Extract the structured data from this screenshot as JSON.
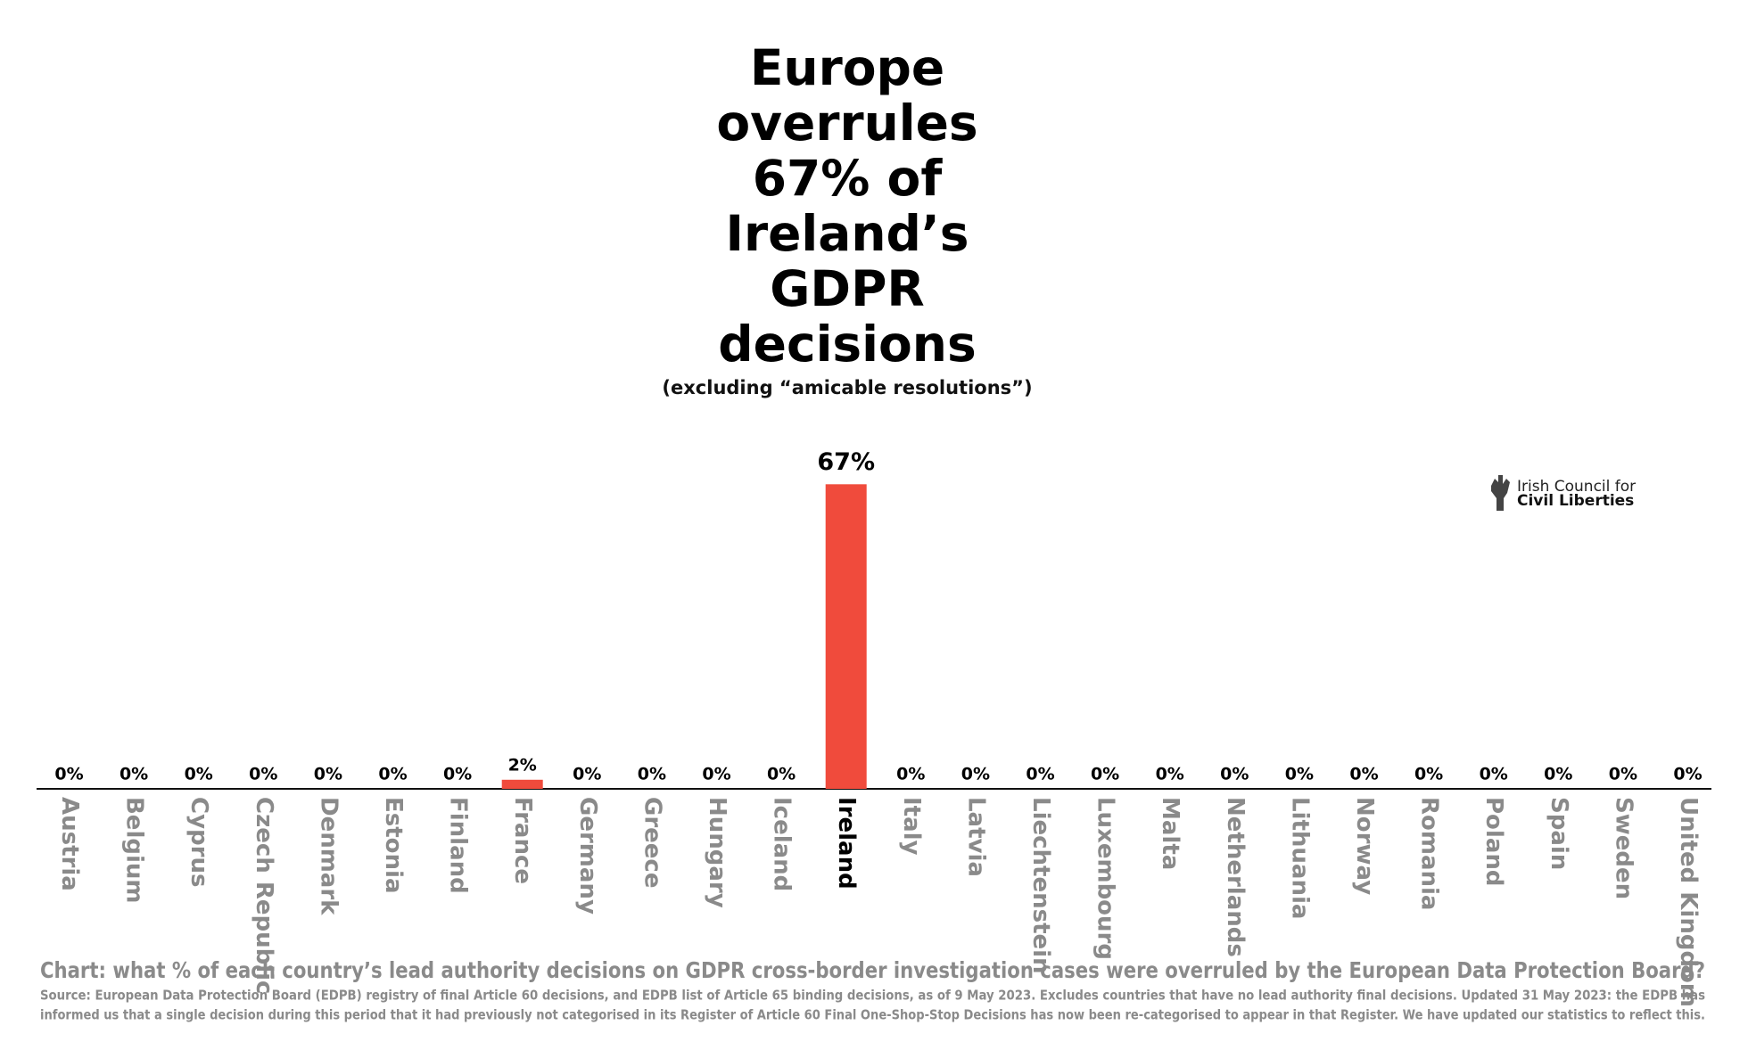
{
  "chart_data": {
    "type": "bar",
    "title": [
      "Europe",
      "overrules",
      "67% of",
      "Ireland’s",
      "GDPR",
      "decisions"
    ],
    "subtitle": "(excluding “amicable resolutions”)",
    "categories": [
      "Austria",
      "Belgium",
      "Cyprus",
      "Czech Republic",
      "Denmark",
      "Estonia",
      "Finland",
      "France",
      "Germany",
      "Greece",
      "Hungary",
      "Iceland",
      "Ireland",
      "Italy",
      "Latvia",
      "Liechtenstein",
      "Luxembourg",
      "Malta",
      "Netherlands",
      "Lithuania",
      "Norway",
      "Romania",
      "Poland",
      "Spain",
      "Sweden",
      "United Kingdom"
    ],
    "values": [
      0,
      0,
      0,
      0,
      0,
      0,
      0,
      2,
      0,
      0,
      0,
      0,
      67,
      0,
      0,
      0,
      0,
      0,
      0,
      0,
      0,
      0,
      0,
      0,
      0,
      0
    ],
    "value_labels": [
      "0%",
      "0%",
      "0%",
      "0%",
      "0%",
      "0%",
      "0%",
      "2%",
      "0%",
      "0%",
      "0%",
      "0%",
      "67%",
      "0%",
      "0%",
      "0%",
      "0%",
      "0%",
      "0%",
      "0%",
      "0%",
      "0%",
      "0%",
      "0%",
      "0%",
      "0%"
    ],
    "color": "#f04b3c",
    "caption": "Chart: what % of each country’s lead authority decisions on GDPR cross-border investigation cases were overruled by the European Data Protection Board?",
    "source": [
      "Source: European Data Protection Board (EDPB) registry of final Article 60 decisions, and EDPB list of Article 65 binding decisions, as of 9 May 2023. Excludes countries that have no lead authority final decisions. Updated 31 May 2023: the EDPB has",
      "informed us that a single decision during this period that it had previously not categorised in its Register  of Article 60 Final One-Shop-Stop Decisions has now been re-categorised to appear in that Register. We have updated our statistics to reflect this."
    ],
    "logo": [
      "Irish Council for",
      "Civil Liberties"
    ]
  }
}
